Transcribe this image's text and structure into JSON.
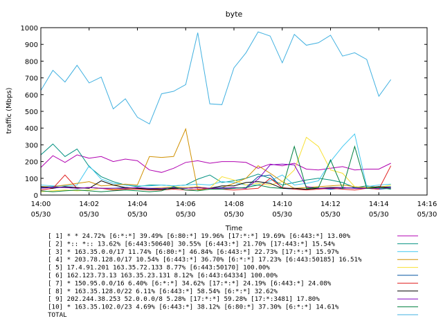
{
  "chart_data": {
    "type": "line",
    "title": "byte",
    "xlabel": "Time",
    "ylabel": "traffic (Mbps)",
    "ylim": [
      0,
      1000
    ],
    "xlim": [
      "14:00 05/30",
      "14:16 05/30"
    ],
    "y_ticks": [
      0,
      100,
      200,
      300,
      400,
      500,
      600,
      700,
      800,
      900,
      1000
    ],
    "x_ticks": [
      {
        "time": "14:00",
        "date": "05/30"
      },
      {
        "time": "14:02",
        "date": "05/30"
      },
      {
        "time": "14:04",
        "date": "05/30"
      },
      {
        "time": "14:06",
        "date": "05/30"
      },
      {
        "time": "14:08",
        "date": "05/30"
      },
      {
        "time": "14:10",
        "date": "05/30"
      },
      {
        "time": "14:12",
        "date": "05/30"
      },
      {
        "time": "14:14",
        "date": "05/30"
      },
      {
        "time": "14:16",
        "date": "05/30"
      }
    ],
    "x": [
      "14:00:00",
      "14:00:30",
      "14:01:00",
      "14:01:30",
      "14:02:00",
      "14:02:30",
      "14:03:00",
      "14:03:30",
      "14:04:00",
      "14:04:30",
      "14:05:00",
      "14:05:30",
      "14:06:00",
      "14:06:30",
      "14:07:00",
      "14:07:30",
      "14:08:00",
      "14:08:30",
      "14:09:00",
      "14:09:30",
      "14:10:00",
      "14:10:30",
      "14:11:00",
      "14:11:30",
      "14:12:00",
      "14:12:30",
      "14:13:00",
      "14:13:30",
      "14:14:00",
      "14:14:30"
    ],
    "grid": false,
    "legend_position": "bottom",
    "series": [
      {
        "name": "[ 1] * * 24.72%  [6:*:*] 39.49% [6:80:*] 19.96% [17:*:*] 19.69% [6:443:*] 13.00%",
        "color": "#b000b0",
        "values": [
          165,
          235,
          195,
          240,
          220,
          230,
          200,
          215,
          205,
          150,
          135,
          160,
          195,
          205,
          190,
          200,
          200,
          195,
          160,
          185,
          175,
          190,
          155,
          150,
          160,
          170,
          150,
          155,
          155,
          190
        ]
      },
      {
        "name": "[ 2] *:: *:: 13.62%  [6:443:50640] 30.55% [6:443:*] 21.70% [17:443:*] 15.54%",
        "color": "#009080",
        "values": [
          240,
          305,
          230,
          275,
          170,
          110,
          80,
          60,
          50,
          60,
          60,
          55,
          60,
          95,
          120,
          75,
          85,
          100,
          125,
          100,
          60,
          75,
          90,
          100,
          90,
          75,
          45,
          55,
          45,
          50
        ]
      },
      {
        "name": "[ 3] * 163.35.0.0/17 11.74%  [6:80:*] 46.84% [6:443:*] 22.73% [17:*:*] 15.97%",
        "color": "#40c8f0",
        "values": [
          60,
          55,
          55,
          60,
          175,
          95,
          70,
          60,
          55,
          55,
          60,
          55,
          60,
          65,
          60,
          80,
          75,
          60,
          60,
          85,
          120,
          60,
          70,
          85,
          200,
          290,
          365,
          50,
          60,
          65
        ]
      },
      {
        "name": "[ 4] * 203.78.128.0/17 10.54%  [6:443:*] 36.70% [6:*:*] 17.23% [6:443:50185] 16.51%",
        "color": "#d09000",
        "values": [
          50,
          50,
          60,
          70,
          80,
          55,
          60,
          65,
          60,
          230,
          225,
          230,
          395,
          30,
          35,
          45,
          70,
          100,
          175,
          130,
          80,
          40,
          45,
          50,
          55,
          60,
          50,
          45,
          50,
          40
        ]
      },
      {
        "name": "[ 5] 17.4.91.201 163.35.72.133 8.77%  [6:443:50170] 100.00%",
        "color": "#f8e030",
        "values": [
          20,
          25,
          30,
          25,
          30,
          40,
          35,
          40,
          35,
          40,
          45,
          50,
          45,
          50,
          40,
          110,
          90,
          60,
          70,
          60,
          80,
          150,
          345,
          290,
          150,
          130,
          50,
          40,
          45,
          60
        ]
      },
      {
        "name": "[ 6] 162.123.73.13 163.35.23.131 8.12%  [6:443:64334] 100.00%",
        "color": "#0050a0",
        "values": [
          45,
          50,
          45,
          40,
          45,
          40,
          40,
          45,
          40,
          40,
          35,
          40,
          40,
          45,
          40,
          45,
          40,
          45,
          110,
          120,
          40,
          35,
          35,
          40,
          35,
          40,
          45,
          40,
          35,
          40
        ]
      },
      {
        "name": "[ 7] * 150.95.0.0/16 6.40%  [6:*:*] 34.62% [17:*:*] 24.19% [6:443:*] 24.08%",
        "color": "#e02020",
        "values": [
          30,
          40,
          120,
          40,
          45,
          40,
          30,
          35,
          35,
          30,
          30,
          35,
          30,
          35,
          40,
          35,
          30,
          35,
          40,
          100,
          45,
          35,
          30,
          35,
          40,
          35,
          30,
          40,
          35,
          175
        ]
      },
      {
        "name": "[ 8] * 163.35.128.0/22 6.11%  [6:443:*] 58.54% [6:*:*] 32.62%",
        "color": "#000000",
        "values": [
          50,
          40,
          50,
          45,
          40,
          85,
          60,
          45,
          40,
          35,
          35,
          40,
          40,
          45,
          40,
          55,
          55,
          75,
          80,
          70,
          40,
          40,
          35,
          40,
          45,
          45,
          40,
          40,
          50,
          45
        ]
      },
      {
        "name": "[ 9] 202.244.38.253 52.0.0.0/8 5.28%  [17:*:*] 59.28% [17:*:3481] 17.80%",
        "color": "#8000c0",
        "values": [
          40,
          45,
          45,
          40,
          45,
          40,
          40,
          40,
          45,
          40,
          40,
          45,
          40,
          45,
          40,
          40,
          45,
          40,
          95,
          180,
          185,
          180,
          50,
          40,
          40,
          45,
          40,
          40,
          40,
          45
        ]
      },
      {
        "name": "[10] * 163.35.102.0/23 4.69%  [6:443:*] 38.12% [6:80:*] 37.30% [6:*:*] 14.61%",
        "color": "#008040",
        "values": [
          25,
          20,
          25,
          30,
          25,
          20,
          25,
          30,
          25,
          20,
          25,
          50,
          30,
          25,
          35,
          35,
          40,
          45,
          60,
          45,
          40,
          290,
          40,
          45,
          210,
          40,
          290,
          40,
          45,
          35
        ]
      },
      {
        "name": "TOTAL",
        "color": "#40b0e0",
        "values": [
          625,
          745,
          675,
          775,
          670,
          705,
          515,
          575,
          465,
          425,
          605,
          620,
          660,
          970,
          545,
          540,
          760,
          850,
          975,
          950,
          790,
          960,
          895,
          910,
          955,
          830,
          850,
          810,
          590,
          690
        ]
      }
    ]
  }
}
